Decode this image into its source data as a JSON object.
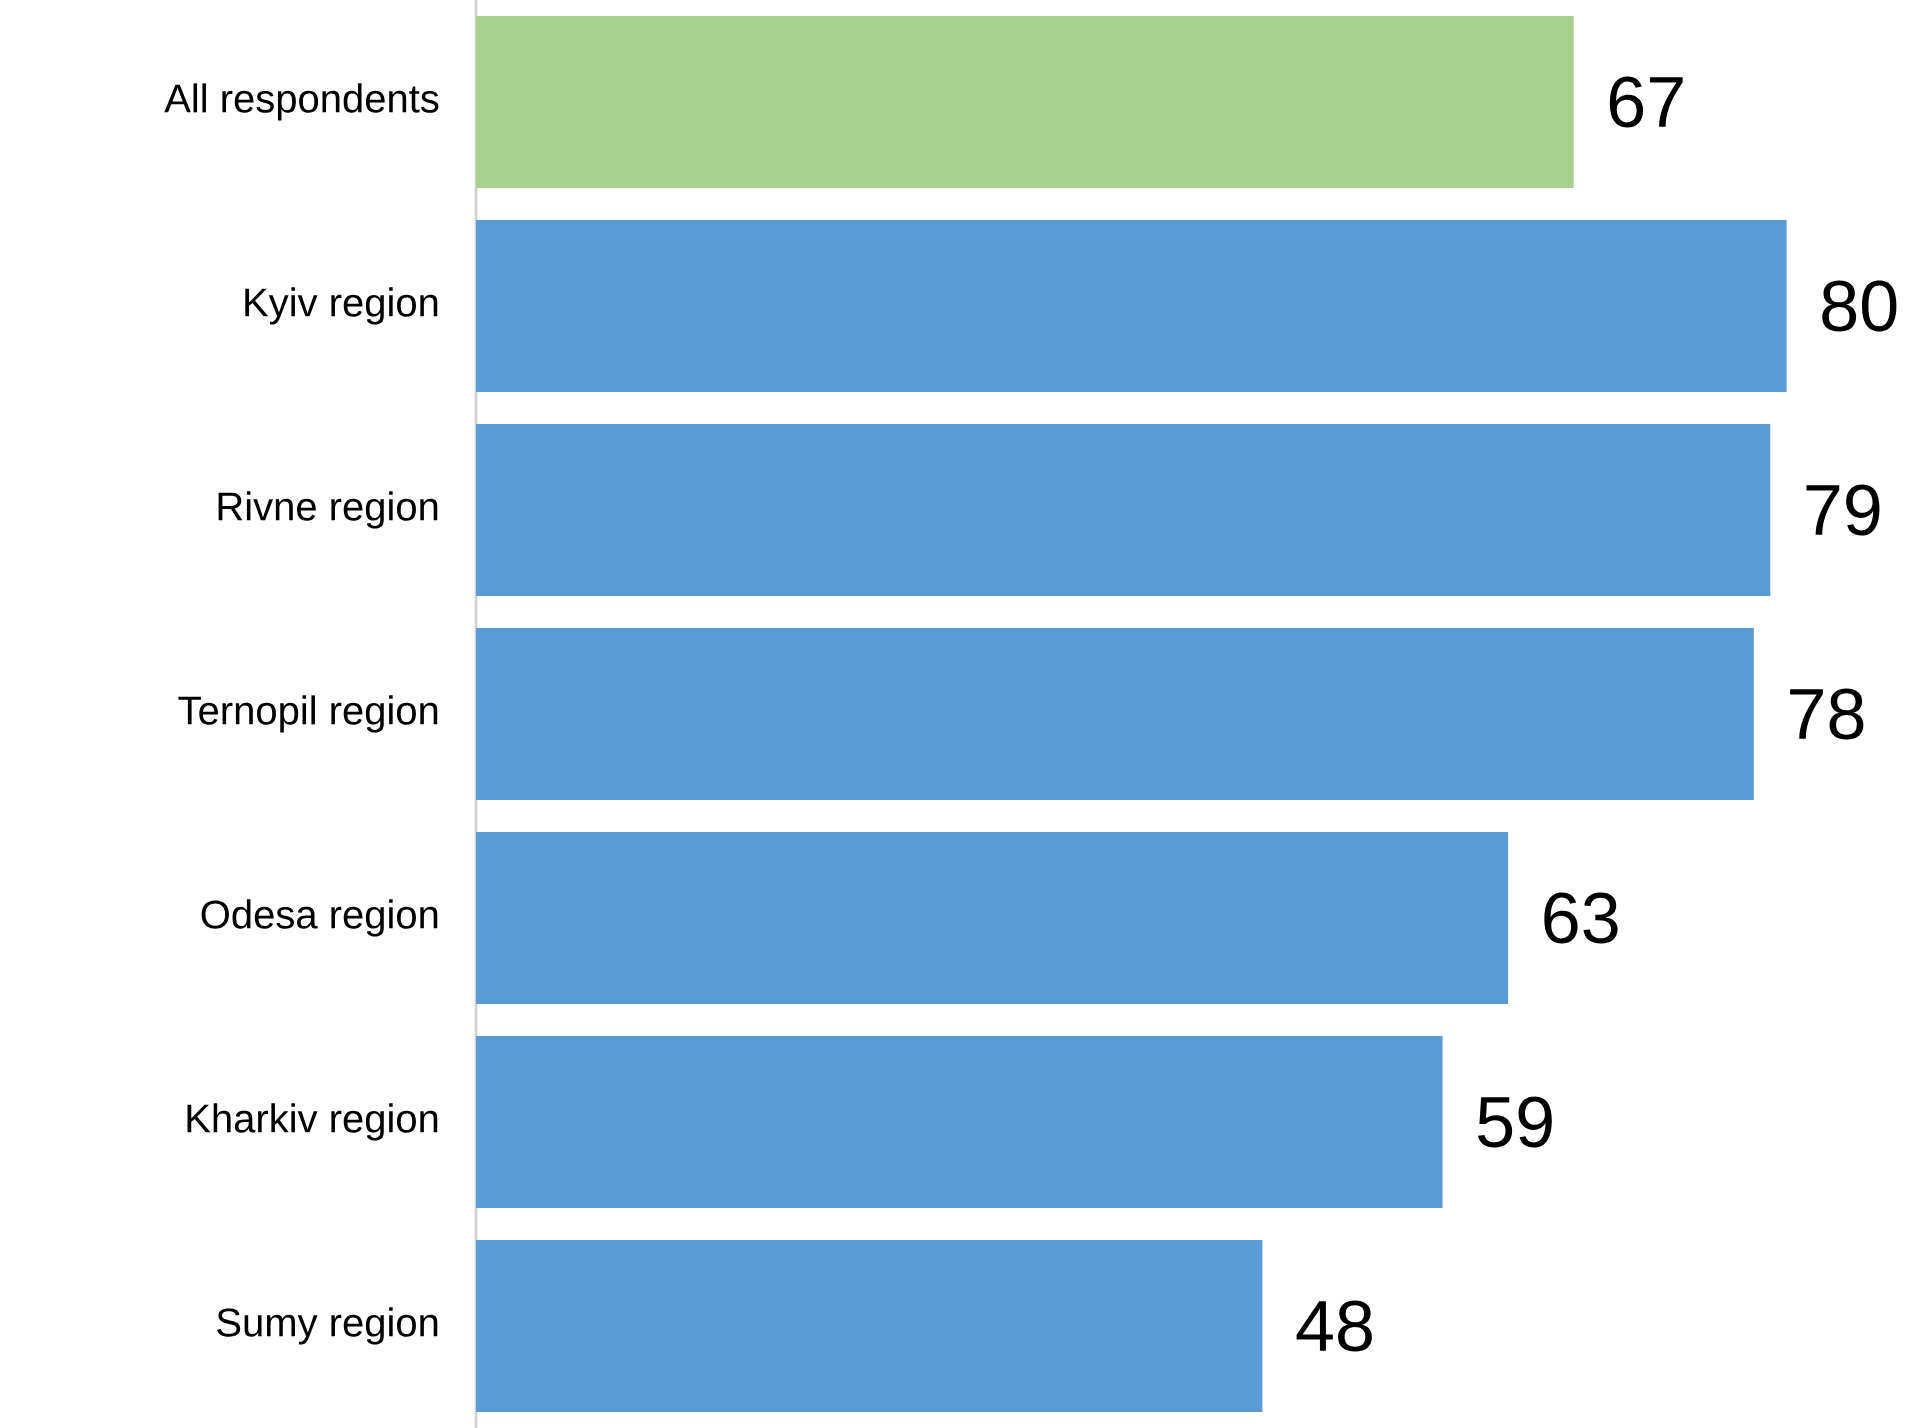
{
  "chart_data": {
    "type": "bar",
    "orientation": "horizontal",
    "categories": [
      "All respondents",
      "Kyiv region",
      "Rivne region",
      "Ternopil region",
      "Odesa region",
      "Kharkiv region",
      "Sumy region"
    ],
    "values": [
      67,
      80,
      79,
      78,
      63,
      59,
      48
    ],
    "colors": [
      "#a9d18e",
      "#5b9bd5",
      "#5b9bd5",
      "#5b9bd5",
      "#5b9bd5",
      "#5b9bd5",
      "#5b9bd5"
    ],
    "data_labels": true
  }
}
